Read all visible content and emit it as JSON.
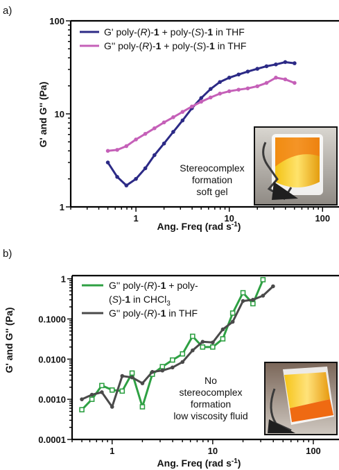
{
  "chart_data": [
    {
      "panel": "a)",
      "type": "line",
      "xlabel": "Ang. Freq (rad s",
      "xlabel_sup": "-1",
      "xlabel_end": ")",
      "ylabel": "G' and G'' (Pa)",
      "xscale": "log",
      "yscale": "log",
      "xlim": [
        0.2,
        150
      ],
      "ylim": [
        1,
        100
      ],
      "xticks": [
        1,
        10,
        100
      ],
      "xtick_labels": [
        "1",
        "10",
        "100"
      ],
      "yticks": [
        1,
        10,
        100
      ],
      "ytick_labels": [
        "1",
        "10",
        "100"
      ],
      "grid": false,
      "legend_position": "top-left",
      "series": [
        {
          "legend": [
            "G' poly-(",
            "R",
            ")-",
            "1",
            " + poly-(",
            "S",
            ")-",
            "1",
            " in THF"
          ],
          "color": "#2c2a86",
          "marker": "circle",
          "x": [
            0.5,
            0.63,
            0.79,
            1.0,
            1.26,
            1.58,
            2.0,
            2.51,
            3.16,
            3.98,
            5.01,
            6.31,
            7.94,
            10.0,
            12.6,
            15.8,
            20.0,
            25.1,
            31.6,
            39.8,
            50.1
          ],
          "y": [
            3.0,
            2.1,
            1.7,
            2.0,
            2.6,
            3.6,
            4.8,
            6.4,
            8.5,
            11.5,
            14.8,
            18.5,
            22.0,
            24.5,
            26.5,
            28.5,
            30.5,
            32.5,
            34.0,
            36.0,
            35.0
          ]
        },
        {
          "legend": [
            "G'' poly-(",
            "R",
            ")-",
            "1",
            " + poly-(",
            "S",
            ")-",
            "1",
            " in THF"
          ],
          "color": "#c560b8",
          "marker": "circle",
          "x": [
            0.5,
            0.63,
            0.79,
            1.0,
            1.26,
            1.58,
            2.0,
            2.51,
            3.16,
            3.98,
            5.01,
            6.31,
            7.94,
            10.0,
            12.6,
            15.8,
            20.0,
            25.1,
            31.6,
            39.8,
            50.1
          ],
          "y": [
            4.0,
            4.1,
            4.5,
            5.3,
            6.1,
            7.0,
            8.1,
            9.2,
            10.5,
            12.0,
            13.5,
            15.0,
            16.5,
            17.5,
            18.2,
            18.8,
            19.8,
            21.5,
            24.5,
            23.5,
            21.5
          ]
        }
      ],
      "annotation": [
        "Stereocomplex",
        "formation",
        "soft gel"
      ],
      "inset": "photo of gel vial"
    },
    {
      "panel": "b)",
      "type": "line",
      "xlabel": "Ang. Freq (rad s",
      "xlabel_sup": "-1",
      "xlabel_end": ")",
      "ylabel": "G' and G'' (Pa)",
      "xscale": "log",
      "yscale": "log",
      "xlim": [
        0.4,
        180
      ],
      "ylim": [
        0.0001,
        1.2
      ],
      "xticks": [
        1,
        10,
        100
      ],
      "xtick_labels": [
        "1",
        "10",
        "100"
      ],
      "yticks": [
        0.0001,
        0.001,
        0.01,
        0.1,
        1
      ],
      "ytick_labels": [
        "0.0001",
        "0.0010",
        "0.0100",
        "0.1000",
        "1"
      ],
      "grid": false,
      "legend_position": "top-left",
      "series": [
        {
          "legend": [
            "G'' poly-(",
            "R",
            ")-",
            "1",
            " + poly-"
          ],
          "legend2": [
            "(",
            "S",
            ")-",
            "1",
            " in CHCl",
            "3"
          ],
          "color": "#2ea043",
          "marker": "square",
          "x": [
            0.5,
            0.63,
            0.79,
            1.0,
            1.26,
            1.58,
            2.0,
            2.51,
            3.16,
            3.98,
            5.01,
            6.31,
            7.94,
            10.0,
            12.6,
            15.8,
            20.0,
            25.1,
            31.6
          ],
          "y": [
            0.00055,
            0.001,
            0.0022,
            0.0017,
            0.0016,
            0.0045,
            0.00065,
            0.0042,
            0.0065,
            0.0095,
            0.0135,
            0.037,
            0.02,
            0.02,
            0.032,
            0.14,
            0.45,
            0.24,
            0.95
          ]
        },
        {
          "legend": [
            "G'' poly-(",
            "R",
            ")-",
            "1",
            "  in THF"
          ],
          "color": "#4a4a4a",
          "marker": "circle",
          "x": [
            0.5,
            0.63,
            0.79,
            1.0,
            1.26,
            1.58,
            2.0,
            2.51,
            3.16,
            3.98,
            5.01,
            6.31,
            7.94,
            10.0,
            12.6,
            15.8,
            20.0,
            25.1,
            31.6,
            39.8
          ],
          "y": [
            0.001,
            0.0013,
            0.0015,
            0.00065,
            0.0038,
            0.0035,
            0.0025,
            0.0048,
            0.0052,
            0.0062,
            0.0085,
            0.0165,
            0.027,
            0.026,
            0.055,
            0.085,
            0.28,
            0.3,
            0.38,
            0.65
          ]
        }
      ],
      "annotation": [
        "No",
        "stereocomplex",
        "formation",
        "low viscosity fluid"
      ],
      "inset": "photo of fluid vial"
    }
  ]
}
